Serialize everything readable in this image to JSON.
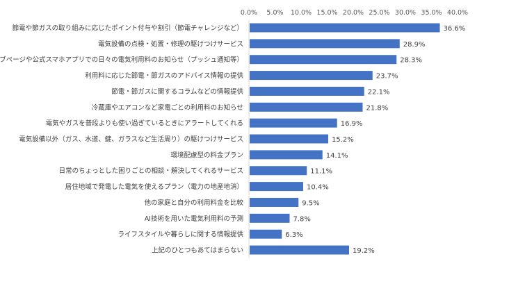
{
  "chart_data": {
    "type": "bar",
    "orientation": "horizontal",
    "title": "",
    "xlabel": "",
    "ylabel": "",
    "xlim": [
      0,
      40
    ],
    "tick_values": [
      0,
      5,
      10,
      15,
      20,
      25,
      30,
      35,
      40
    ],
    "tick_labels": [
      "0.0%",
      "5.0%",
      "10.0%",
      "15.0%",
      "20.0%",
      "25.0%",
      "30.0%",
      "35.0%",
      "40.0%"
    ],
    "axis_position": "top",
    "grid": false,
    "legend": "none",
    "bar_color": "#4472C4",
    "categories": [
      "節電や節ガスの取り組みに応じたポイント付与や割引（節電チャレンジなど）",
      "電気設備の点検・処置・修理の駆けつけサービス",
      "ウェブページや公式スマホアプリでの日々の電気利用料のお知らせ（プッシュ通知等）",
      "利用料に応じた節電・節ガスのアドバイス情報の提供",
      "節電・節ガスに関するコラムなどの情報提供",
      "冷蔵庫やエアコンなど家電ごとの利用料のお知らせ",
      "電気やガスを普段よりも使い過ぎているときにアラートしてくれる",
      "電気設備以外（ガス、水道、鍵、ガラスなど生活周り）の駆けつけサービス",
      "環境配慮型の料金プラン",
      "日常のちょっとした困りごとの相談・解決してくれるサービス",
      "居住地域で発電した電気を使えるプラン（電力の地産地消）",
      "他の家庭と自分の利用料金を比較",
      "AI技術を用いた電気利用料の予測",
      "ライフスタイルや暮らしに関する情報提供",
      "上記のひとつもあてはまらない"
    ],
    "values": [
      36.6,
      28.9,
      28.3,
      23.7,
      22.1,
      21.8,
      16.9,
      15.2,
      14.1,
      11.1,
      10.4,
      9.5,
      7.8,
      6.3,
      19.2
    ],
    "value_labels": [
      "36.6%",
      "28.9%",
      "28.3%",
      "23.7%",
      "22.1%",
      "21.8%",
      "16.9%",
      "15.2%",
      "14.1%",
      "11.1%",
      "10.4%",
      "9.5%",
      "7.8%",
      "6.3%",
      "19.2%"
    ]
  }
}
